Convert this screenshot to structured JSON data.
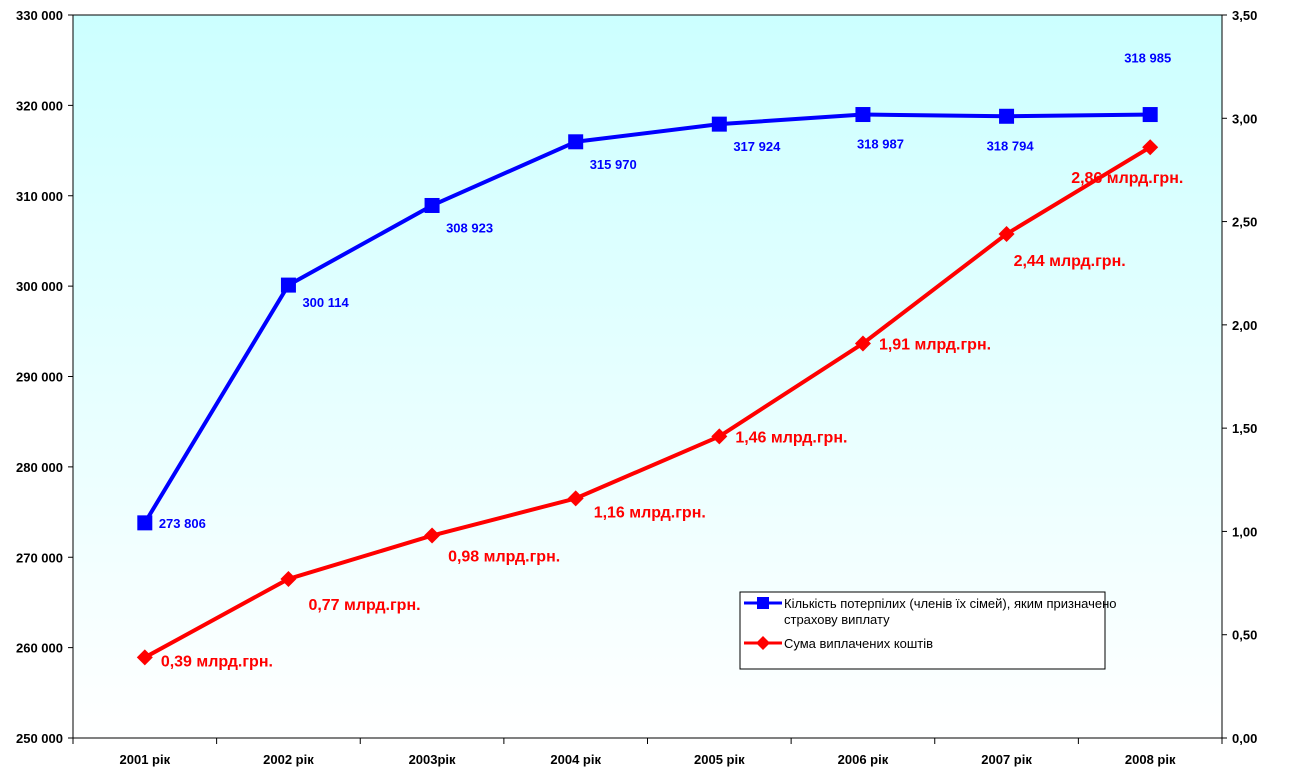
{
  "chart_data": {
    "type": "line",
    "categories": [
      "2001 рік",
      "2002 рік",
      "2003рік",
      "2004 рік",
      "2005 рік",
      "2006 рік",
      "2007 рік",
      "2008 рік"
    ],
    "series": [
      {
        "name": "Кількість потерпілих (членів їх сімей), яким призначено страхову виплату",
        "axis": "left",
        "color": "#0000ff",
        "marker": "square",
        "values": [
          273806,
          300114,
          308923,
          315970,
          317924,
          318987,
          318794,
          318985
        ],
        "labels": [
          "273 806",
          "300 114",
          "308 923",
          "315 970",
          "317 924",
          "318 987",
          "318 794",
          "318 985"
        ]
      },
      {
        "name": "Сума виплачених коштів",
        "axis": "right",
        "color": "#ff0000",
        "marker": "diamond",
        "values": [
          0.39,
          0.77,
          0.98,
          1.16,
          1.46,
          1.91,
          2.44,
          2.86
        ],
        "labels": [
          "0,39 млрд.грн.",
          "0,77 млрд.грн.",
          "0,98 млрд.грн.",
          "1,16 млрд.грн.",
          "1,46 млрд.грн.",
          "1,91 млрд.грн.",
          "2,44 млрд.грн.",
          "2,86 млрд.грн."
        ]
      }
    ],
    "y_left": {
      "min": 250000,
      "max": 330000,
      "ticks": [
        250000,
        260000,
        270000,
        280000,
        290000,
        300000,
        310000,
        320000,
        330000
      ],
      "tick_labels": [
        "250 000",
        "260 000",
        "270 000",
        "280 000",
        "290 000",
        "300 000",
        "310 000",
        "320 000",
        "330 000"
      ]
    },
    "y_right": {
      "min": 0,
      "max": 3.5,
      "ticks": [
        0,
        0.5,
        1,
        1.5,
        2,
        2.5,
        3,
        3.5
      ],
      "tick_labels": [
        "0,00",
        "0,50",
        "1,00",
        "1,50",
        "2,00",
        "2,50",
        "3,00",
        "3,50"
      ]
    },
    "grid": false,
    "legend_position": "bottom-right",
    "colors": {
      "plot_top": "#ccffff",
      "plot_bottom": "#ffffff",
      "series_1": "#0000ff",
      "series_2": "#ff0000"
    }
  }
}
